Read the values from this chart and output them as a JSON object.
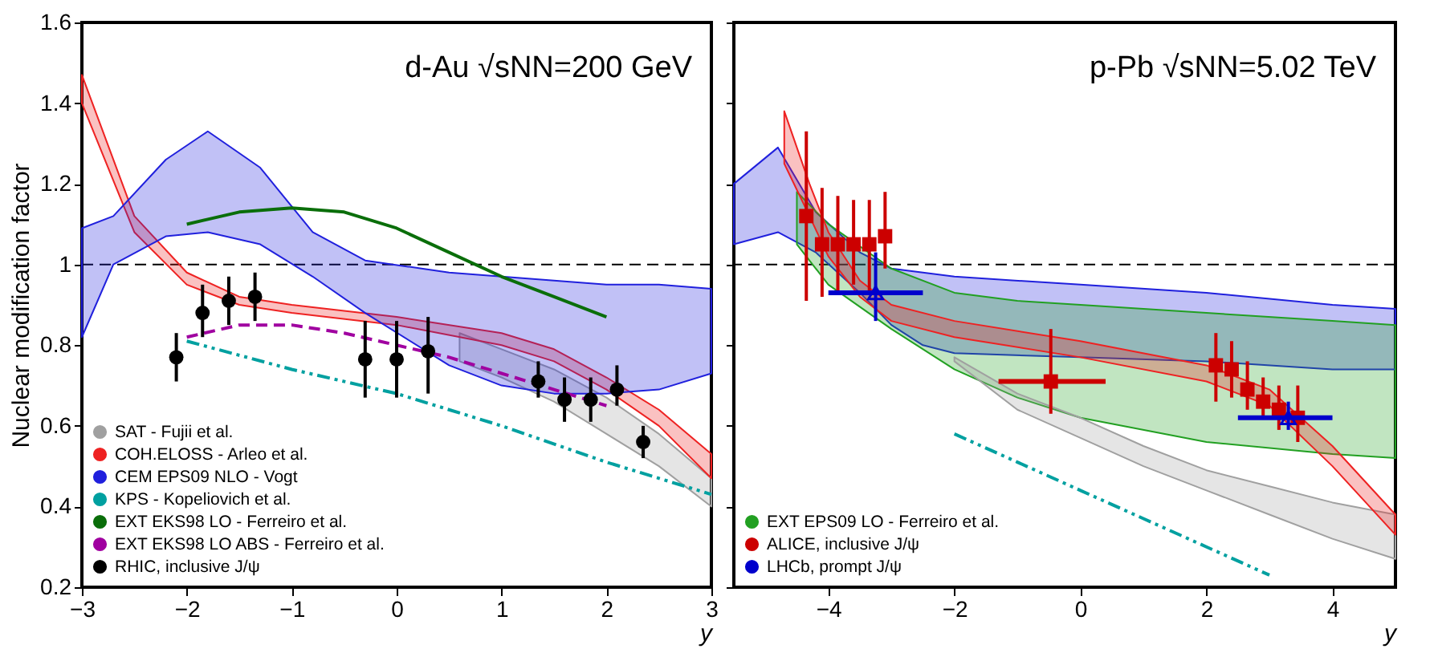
{
  "chart_data": [
    {
      "type": "line",
      "title": "d-Au √sNN=200 GeV",
      "xlabel": "y",
      "ylabel": "Nuclear modification factor",
      "xlim": [
        -3,
        3
      ],
      "ylim": [
        0.2,
        1.6
      ],
      "xticks": [
        -3,
        -2,
        -1,
        0,
        1,
        2,
        3
      ],
      "yticks": [
        0.2,
        0.4,
        0.6,
        0.8,
        1,
        1.2,
        1.4,
        1.6
      ],
      "legend": "bottom left",
      "grid": false,
      "ref_lines": [
        {
          "axis": "y",
          "value": 1,
          "line_style": "dashed",
          "color": "#000000"
        }
      ],
      "series": [
        {
          "type": "area",
          "name": "SAT - Fujii et al.",
          "color": "#a0a0a0",
          "x": [
            0.6,
            1,
            1.5,
            2,
            2.5,
            3
          ],
          "values": [
            null,
            null,
            null,
            null,
            null,
            null
          ],
          "lower": [
            0.76,
            0.72,
            0.66,
            0.58,
            0.5,
            0.4
          ],
          "upper": [
            0.83,
            0.79,
            0.74,
            0.67,
            0.58,
            0.47
          ]
        },
        {
          "type": "area",
          "name": "COH.ELOSS - Arleo et al.",
          "color": "#ee2222",
          "x": [
            -3,
            -2.5,
            -2,
            -1.5,
            -1,
            0,
            1,
            1.5,
            2,
            2.5,
            3
          ],
          "values": [
            null,
            null,
            null,
            null,
            null,
            null,
            null,
            null,
            null,
            null,
            null
          ],
          "lower": [
            1.4,
            1.08,
            0.95,
            0.9,
            0.88,
            0.85,
            0.8,
            0.76,
            0.69,
            0.6,
            0.47
          ],
          "upper": [
            1.47,
            1.12,
            0.98,
            0.92,
            0.9,
            0.87,
            0.83,
            0.79,
            0.72,
            0.64,
            0.53
          ]
        },
        {
          "type": "area",
          "name": "CEM EPS09 NLO - Vogt",
          "color": "#2020dd",
          "x": [
            -3,
            -2.7,
            -2.2,
            -1.8,
            -1.3,
            -0.8,
            -0.3,
            0.5,
            1,
            1.5,
            2,
            2.5,
            3
          ],
          "values": [
            null,
            null,
            null,
            null,
            null,
            null,
            null,
            null,
            null,
            null,
            null,
            null,
            null
          ],
          "lower": [
            0.82,
            1.0,
            1.07,
            1.08,
            1.05,
            0.97,
            0.88,
            0.75,
            0.7,
            0.68,
            0.68,
            0.69,
            0.73
          ],
          "upper": [
            1.09,
            1.12,
            1.26,
            1.33,
            1.24,
            1.08,
            1.01,
            0.98,
            0.97,
            0.96,
            0.95,
            0.95,
            0.94
          ]
        },
        {
          "type": "line",
          "name": "KPS - Kopeliovich et al.",
          "color": "#00a0a0",
          "line_style": "dotted",
          "x": [
            -2,
            -1,
            0,
            1,
            2,
            3
          ],
          "values": [
            0.81,
            0.74,
            0.68,
            0.6,
            0.51,
            0.43
          ]
        },
        {
          "type": "line",
          "name": "EXT EKS98 LO - Ferreiro et al.",
          "color": "#0a6e0a",
          "line_style": "solid",
          "x": [
            -2,
            -1.5,
            -1,
            -0.5,
            0,
            0.5,
            1,
            1.5,
            2
          ],
          "values": [
            1.1,
            1.13,
            1.14,
            1.13,
            1.09,
            1.03,
            0.97,
            0.92,
            0.87
          ]
        },
        {
          "type": "line",
          "name": "EXT EKS98 LO ABS - Ferreiro et al.",
          "color": "#a000a0",
          "line_style": "dashed",
          "x": [
            -2,
            -1.5,
            -1,
            -0.5,
            0,
            0.5,
            1,
            1.5,
            2
          ],
          "values": [
            0.82,
            0.85,
            0.85,
            0.83,
            0.8,
            0.77,
            0.73,
            0.69,
            0.65
          ]
        },
        {
          "type": "scatter",
          "name": "RHIC, inclusive J/ψ",
          "color": "#000000",
          "marker": "circle",
          "x": [
            -2.1,
            -1.85,
            -1.6,
            -1.35,
            -0.3,
            0.0,
            0.3,
            1.35,
            1.6,
            1.85,
            2.1,
            2.35
          ],
          "values": [
            0.77,
            0.88,
            0.91,
            0.92,
            0.765,
            0.765,
            0.785,
            0.71,
            0.665,
            0.665,
            0.69,
            0.56
          ],
          "errors": [
            [
              0.71,
              0.83
            ],
            [
              0.82,
              0.95
            ],
            [
              0.85,
              0.97
            ],
            [
              0.86,
              0.98
            ],
            [
              0.67,
              0.86
            ],
            [
              0.67,
              0.86
            ],
            [
              0.68,
              0.87
            ],
            [
              0.67,
              0.76
            ],
            [
              0.61,
              0.72
            ],
            [
              0.61,
              0.72
            ],
            [
              0.65,
              0.75
            ],
            [
              0.52,
              0.6
            ]
          ]
        }
      ]
    },
    {
      "type": "line",
      "title": "p-Pb √sNN=5.02 TeV",
      "xlabel": "y",
      "xlim": [
        -5.5,
        5
      ],
      "ylim": [
        0.2,
        1.6
      ],
      "xticks": [
        -4,
        -2,
        0,
        2,
        4
      ],
      "yticks": [
        0.2,
        0.4,
        0.6,
        0.8,
        1,
        1.2,
        1.4,
        1.6
      ],
      "tick_labels": "x",
      "legend": "bottom left",
      "grid": false,
      "ref_lines": [
        {
          "axis": "y",
          "value": 1,
          "line_style": "dashed",
          "color": "#000000"
        }
      ],
      "series": [
        {
          "type": "area",
          "color": "#2020dd",
          "x": [
            -5.5,
            -4.8,
            -4.2,
            -3.5,
            -3,
            -2.5,
            -2,
            0,
            2,
            4,
            5
          ],
          "values": [
            null,
            null,
            null,
            null,
            null,
            null,
            null,
            null,
            null,
            null,
            null
          ],
          "lower": [
            1.05,
            1.08,
            1.03,
            0.93,
            0.85,
            0.8,
            0.78,
            0.77,
            0.76,
            0.74,
            0.74
          ],
          "upper": [
            1.2,
            1.29,
            1.13,
            1.03,
            0.99,
            0.98,
            0.97,
            0.95,
            0.93,
            0.9,
            0.89
          ]
        },
        {
          "type": "area",
          "name": "EXT EPS09 LO - Ferreiro et al.",
          "color": "#22a022",
          "x": [
            -4.5,
            -4,
            -3,
            -2,
            -1,
            0,
            2,
            4,
            5
          ],
          "values": [
            null,
            null,
            null,
            null,
            null,
            null,
            null,
            null,
            null
          ],
          "lower": [
            1.05,
            0.95,
            0.84,
            0.74,
            0.67,
            0.62,
            0.56,
            0.53,
            0.52
          ],
          "upper": [
            1.18,
            1.1,
            0.99,
            0.93,
            0.91,
            0.9,
            0.88,
            0.86,
            0.85
          ]
        },
        {
          "type": "area",
          "color": "#a0a0a0",
          "x": [
            -2,
            -1,
            0,
            1,
            2,
            3,
            4,
            5
          ],
          "values": [
            null,
            null,
            null,
            null,
            null,
            null,
            null,
            null
          ],
          "lower": [
            0.76,
            0.64,
            0.57,
            0.5,
            0.44,
            0.38,
            0.32,
            0.27
          ],
          "upper": [
            0.77,
            0.68,
            0.62,
            0.55,
            0.49,
            0.45,
            0.41,
            0.38
          ]
        },
        {
          "type": "area",
          "color": "#ee2222",
          "x": [
            -4.7,
            -4.3,
            -4,
            -3.5,
            -3,
            -2,
            0,
            2,
            3,
            4,
            5
          ],
          "values": [
            null,
            null,
            null,
            null,
            null,
            null,
            null,
            null,
            null,
            null,
            null
          ],
          "lower": [
            1.25,
            1.12,
            1.02,
            0.92,
            0.86,
            0.82,
            0.77,
            0.71,
            0.65,
            0.5,
            0.33
          ],
          "upper": [
            1.38,
            1.2,
            1.08,
            0.96,
            0.9,
            0.86,
            0.81,
            0.75,
            0.69,
            0.55,
            0.38
          ]
        },
        {
          "type": "line",
          "color": "#00a0a0",
          "line_style": "dotted",
          "x": [
            -2,
            -1,
            0,
            1,
            2,
            3
          ],
          "values": [
            0.58,
            0.51,
            0.44,
            0.37,
            0.3,
            0.23
          ]
        },
        {
          "type": "scatter",
          "name": "ALICE, inclusive J/ψ",
          "color": "#cc0000",
          "marker": "square",
          "x": [
            -4.35,
            -4.1,
            -3.85,
            -3.6,
            -3.35,
            -3.1,
            -0.47,
            2.15,
            2.4,
            2.65,
            2.9,
            3.15,
            3.45
          ],
          "values": [
            1.12,
            1.05,
            1.05,
            1.05,
            1.05,
            1.07,
            0.71,
            0.75,
            0.74,
            0.69,
            0.66,
            0.64,
            0.62
          ],
          "errors": [
            [
              0.91,
              1.33
            ],
            [
              0.92,
              1.19
            ],
            [
              0.93,
              1.17
            ],
            [
              0.95,
              1.16
            ],
            [
              0.93,
              1.16
            ],
            [
              0.99,
              1.18
            ],
            [
              0.63,
              0.84
            ],
            [
              0.66,
              0.83
            ],
            [
              0.67,
              0.81
            ],
            [
              0.64,
              0.76
            ],
            [
              0.62,
              0.72
            ],
            [
              0.59,
              0.7
            ],
            [
              0.56,
              0.7
            ]
          ],
          "xerrors": [
            null,
            null,
            null,
            null,
            null,
            null,
            [
              -1.3,
              0.4
            ],
            null,
            null,
            null,
            null,
            null,
            null
          ]
        },
        {
          "type": "scatter",
          "name": "LHCb, prompt J/ψ",
          "color": "#0000cc",
          "marker": "triangle",
          "x": [
            -3.25,
            3.3
          ],
          "values": [
            0.93,
            0.62
          ],
          "errors": [
            [
              0.86,
              1.03
            ],
            [
              0.59,
              0.66
            ]
          ],
          "xerrors": [
            [
              -4.0,
              -2.5
            ],
            [
              2.5,
              4.0
            ]
          ]
        }
      ]
    }
  ]
}
